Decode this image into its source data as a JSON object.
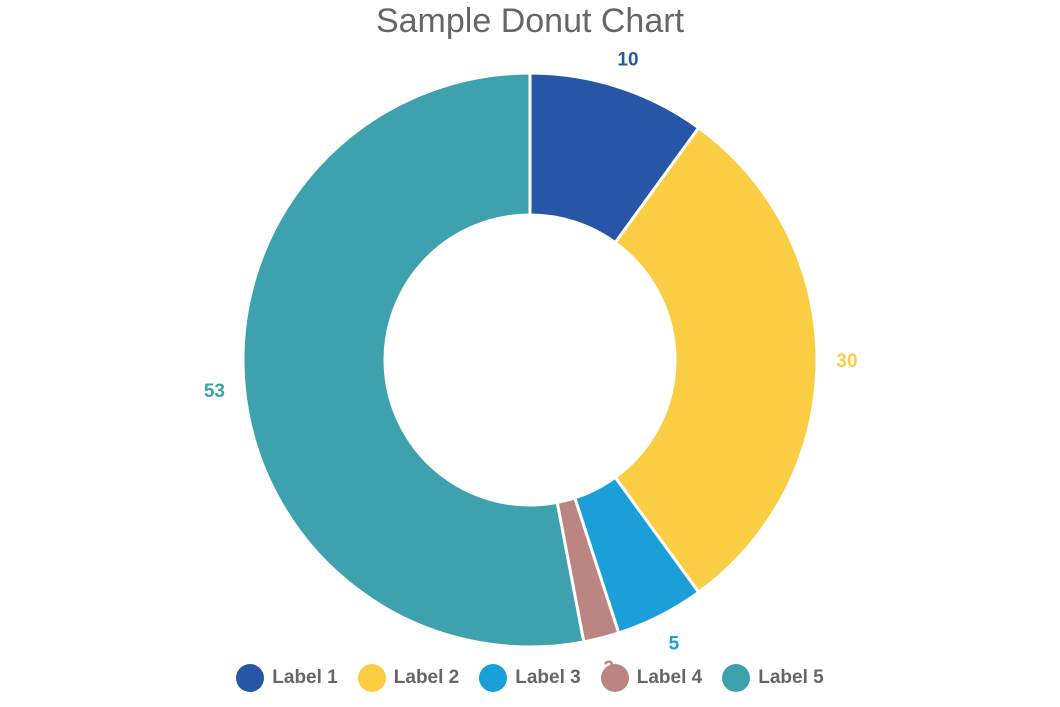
{
  "chart_data": {
    "type": "pie",
    "subtype": "donut",
    "title": "Sample Donut Chart",
    "categories": [
      "Label 1",
      "Label 2",
      "Label 3",
      "Label 4",
      "Label 5"
    ],
    "values": [
      10,
      30,
      5,
      2,
      53
    ],
    "colors": [
      "#2756a6",
      "#fbcd43",
      "#1b9fd8",
      "#bb8582",
      "#3ea2ae"
    ],
    "data_labels": [
      "10",
      "30",
      "5",
      "2",
      "53"
    ],
    "legend_position": "bottom"
  },
  "legend": [
    {
      "label": "Label 1",
      "color": "#2756a6"
    },
    {
      "label": "Label 2",
      "color": "#fbcd43"
    },
    {
      "label": "Label 3",
      "color": "#1b9fd8"
    },
    {
      "label": "Label 4",
      "color": "#bb8582"
    },
    {
      "label": "Label 5",
      "color": "#3ea2ae"
    }
  ]
}
